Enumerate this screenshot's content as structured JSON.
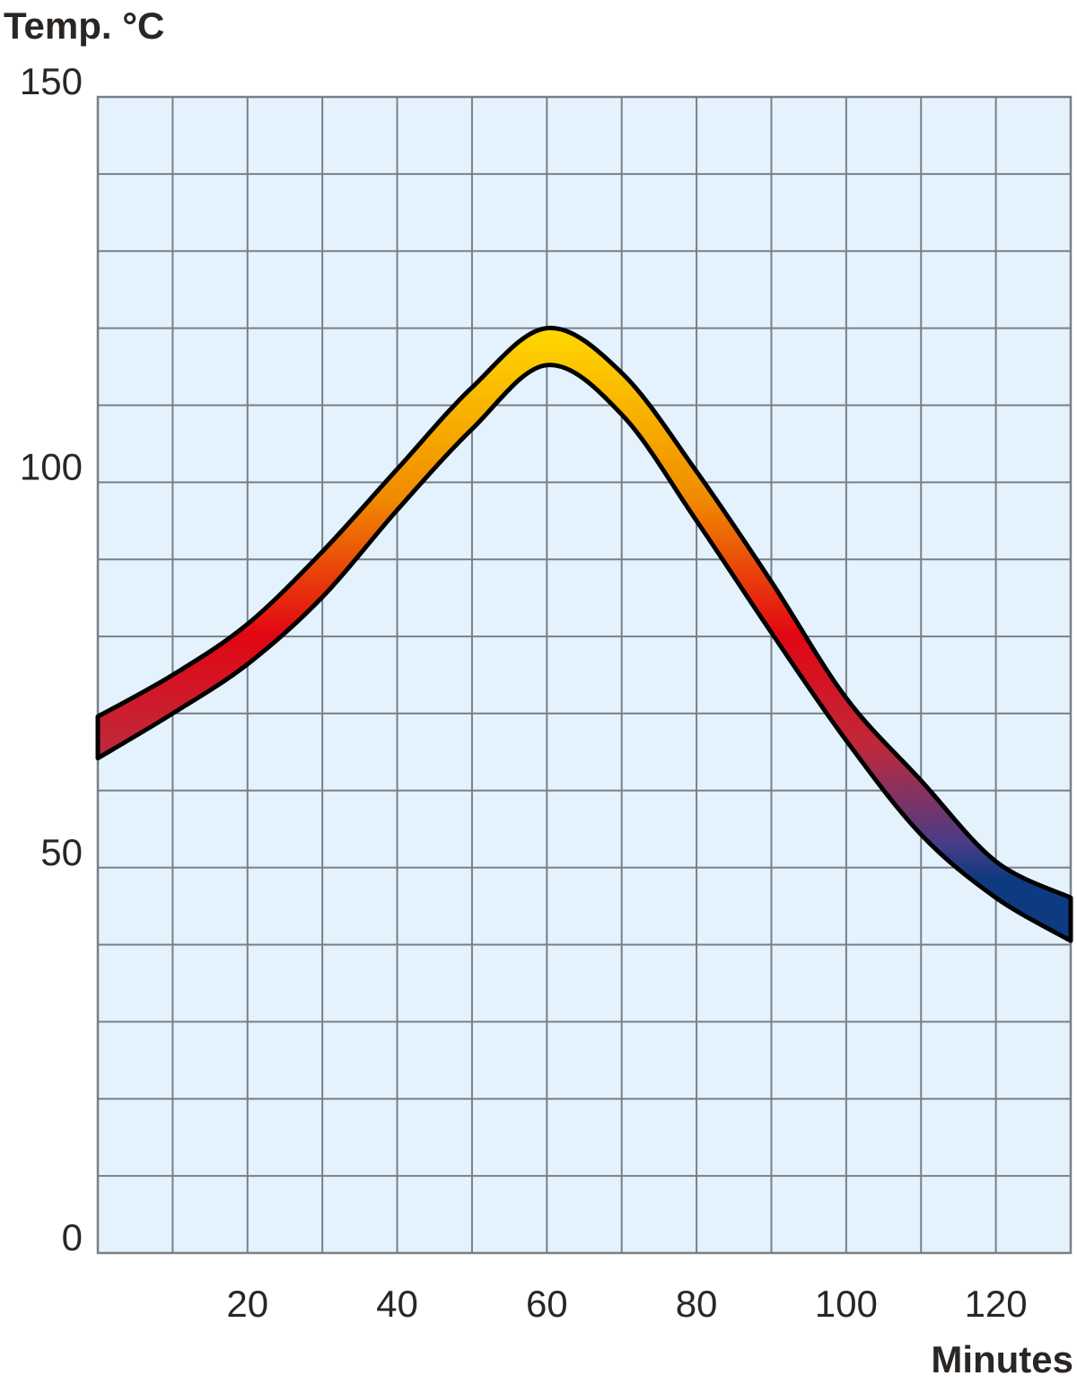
{
  "chart_data": {
    "type": "band",
    "ylabel": "Temp. °C",
    "xlabel": "Minutes",
    "x": [
      0,
      10,
      20,
      30,
      40,
      50,
      60,
      70,
      80,
      90,
      100,
      110,
      120,
      130
    ],
    "high": [
      69.6,
      75.0,
      81.6,
      91.0,
      101.7,
      112.3,
      120.0,
      114.2,
      101.4,
      87.1,
      72.0,
      61.3,
      50.8,
      46.1
    ],
    "low": [
      64.2,
      70.0,
      76.4,
      85.1,
      96.4,
      106.9,
      115.2,
      108.8,
      95.0,
      80.5,
      66.5,
      54.3,
      46.1,
      40.5
    ],
    "xlim": [
      0,
      130
    ],
    "ylim": [
      0,
      150
    ],
    "xticks": [
      20,
      40,
      60,
      80,
      100,
      120
    ],
    "yticks": [
      0,
      50,
      100,
      150
    ],
    "xgrid": [
      10,
      20,
      30,
      40,
      50,
      60,
      70,
      80,
      90,
      100,
      110,
      120
    ],
    "ygrid": [
      10,
      20,
      30,
      40,
      50,
      60,
      70,
      80,
      90,
      100,
      110,
      120,
      130,
      140
    ],
    "colors": [
      "#ffd800",
      "#f08a00",
      "#e30613",
      "#c0283a",
      "#4a3c86",
      "#0d3a80"
    ],
    "background": "#e3f2fd",
    "grid_color": "#7a7f86"
  }
}
